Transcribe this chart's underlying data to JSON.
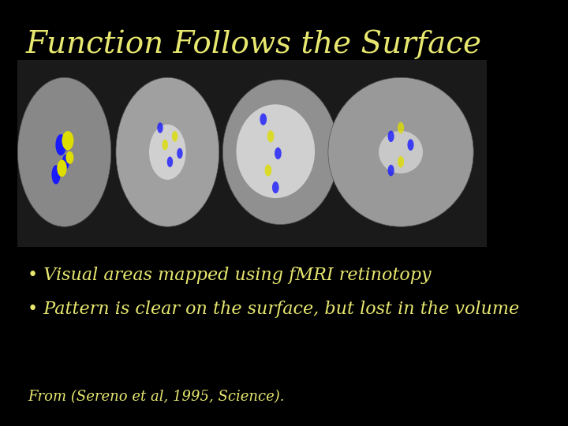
{
  "background_color": "#000000",
  "title": "Function Follows the Surface",
  "title_color": "#e8e870",
  "title_fontsize": 28,
  "title_fontstyle": "italic",
  "bullet1": "• Visual areas mapped using fMRI retinotopy",
  "bullet2": "• Pattern is clear on the surface, but lost in the volume",
  "bullet_color": "#e8e870",
  "bullet_fontsize": 16,
  "citation": "From (Sereno et al, 1995, Science).",
  "citation_color": "#e8e870",
  "citation_fontsize": 13,
  "figsize": [
    7.2,
    5.4
  ],
  "dpi": 100
}
